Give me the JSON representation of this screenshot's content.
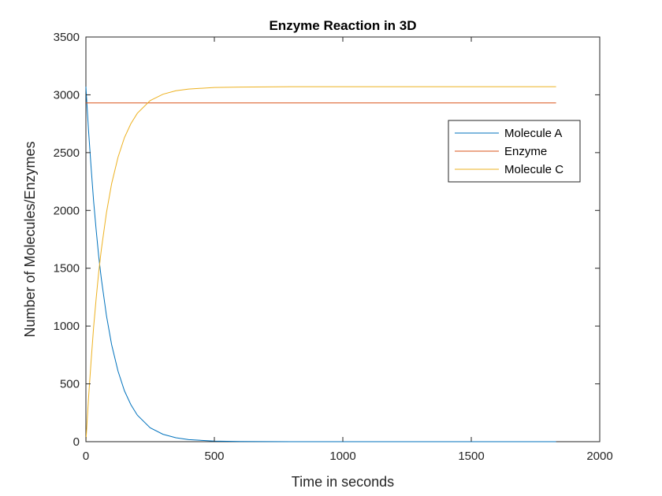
{
  "chart_data": {
    "type": "line",
    "title": "Enzyme Reaction in 3D",
    "xlabel": "Time in seconds",
    "ylabel": "Number of Molecules/Enzymes",
    "xlim": [
      0,
      2000
    ],
    "ylim": [
      0,
      3500
    ],
    "xticks": [
      "0",
      "500",
      "1000",
      "1500",
      "2000"
    ],
    "yticks": [
      "0",
      "500",
      "1000",
      "1500",
      "2000",
      "2500",
      "3000",
      "3500"
    ],
    "grid": false,
    "legend_position": "top-right",
    "series": [
      {
        "name": "Molecule A",
        "color": "#0072BD",
        "x": [
          0,
          10,
          20,
          30,
          40,
          50,
          60,
          80,
          100,
          125,
          150,
          175,
          200,
          250,
          300,
          350,
          400,
          500,
          600,
          800,
          1000,
          1200,
          1500,
          1830
        ],
        "y": [
          3070,
          2700,
          2380,
          2080,
          1830,
          1600,
          1410,
          1090,
          840,
          610,
          440,
          320,
          230,
          120,
          64,
          34,
          18,
          5,
          2,
          0,
          0,
          0,
          0,
          0
        ]
      },
      {
        "name": "Enzyme",
        "color": "#D95319",
        "x": [
          0,
          1830
        ],
        "y": [
          2930,
          2930
        ]
      },
      {
        "name": "Molecule C",
        "color": "#EDB120",
        "x": [
          0,
          10,
          20,
          30,
          40,
          50,
          60,
          80,
          100,
          125,
          150,
          175,
          200,
          250,
          300,
          350,
          400,
          500,
          600,
          800,
          1000,
          1200,
          1500,
          1830
        ],
        "y": [
          0,
          370,
          690,
          990,
          1240,
          1470,
          1660,
          1980,
          2230,
          2460,
          2630,
          2750,
          2840,
          2950,
          3005,
          3035,
          3050,
          3063,
          3067,
          3070,
          3070,
          3070,
          3070,
          3070
        ]
      }
    ]
  }
}
